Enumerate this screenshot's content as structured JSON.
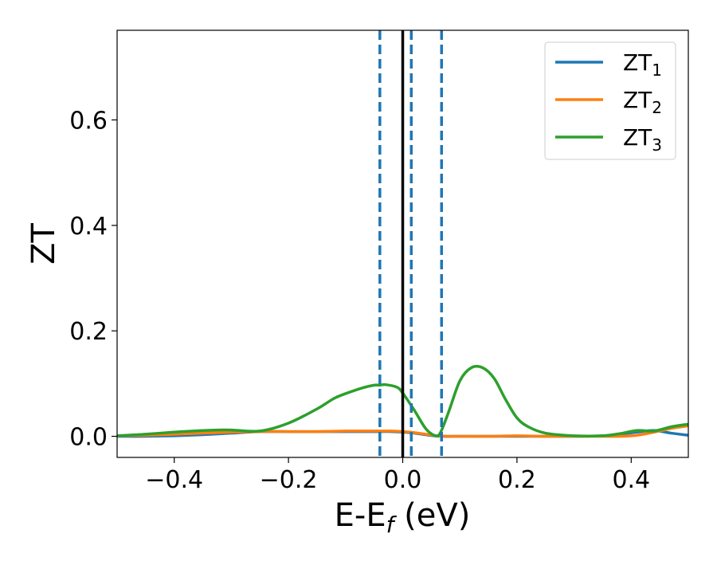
{
  "chart_data": {
    "type": "line",
    "xlabel_main": "E-E",
    "xlabel_sub": "f",
    "xlabel_unit": " (eV)",
    "ylabel": "ZT",
    "xlim": [
      -0.5,
      0.5
    ],
    "ylim": [
      -0.04,
      0.77
    ],
    "xticks": [
      -0.4,
      -0.2,
      0.0,
      0.2,
      0.4
    ],
    "xtick_labels": [
      "−0.4",
      "−0.2",
      "0.0",
      "0.2",
      "0.4"
    ],
    "yticks": [
      0.0,
      0.2,
      0.4,
      0.6
    ],
    "ytick_labels": [
      "0.0",
      "0.2",
      "0.4",
      "0.6"
    ],
    "grid": false,
    "legend_position": "top-right",
    "series": [
      {
        "name": "ZT",
        "name_sub": "1",
        "color": "#1f77b4",
        "x": [
          -0.5,
          -0.45,
          -0.4,
          -0.35,
          -0.3,
          -0.25,
          -0.2,
          -0.15,
          -0.1,
          -0.07,
          -0.04,
          -0.02,
          0.0,
          0.02,
          0.04,
          0.055,
          0.07,
          0.1,
          0.15,
          0.2,
          0.25,
          0.3,
          0.35,
          0.38,
          0.41,
          0.44,
          0.47,
          0.5
        ],
        "y": [
          0.0,
          0.0,
          0.001,
          0.003,
          0.006,
          0.009,
          0.009,
          0.009,
          0.009,
          0.009,
          0.009,
          0.009,
          0.008,
          0.006,
          0.003,
          0.001,
          0.0,
          0.0,
          0.0,
          0.0,
          0.0,
          0.0,
          0.001,
          0.004,
          0.008,
          0.011,
          0.006,
          0.002
        ]
      },
      {
        "name": "ZT",
        "name_sub": "2",
        "color": "#ff7f0e",
        "x": [
          -0.5,
          -0.45,
          -0.4,
          -0.35,
          -0.3,
          -0.25,
          -0.2,
          -0.15,
          -0.1,
          -0.05,
          -0.02,
          0.0,
          0.02,
          0.04,
          0.06,
          0.08,
          0.1,
          0.15,
          0.2,
          0.25,
          0.3,
          0.35,
          0.38,
          0.41,
          0.44,
          0.47,
          0.5
        ],
        "y": [
          0.001,
          0.002,
          0.004,
          0.006,
          0.008,
          0.009,
          0.009,
          0.009,
          0.01,
          0.01,
          0.01,
          0.009,
          0.007,
          0.004,
          0.001,
          0.0,
          0.0,
          0.0,
          0.001,
          0.0,
          0.0,
          0.0,
          0.0,
          0.002,
          0.008,
          0.015,
          0.02
        ]
      },
      {
        "name": "ZT",
        "name_sub": "3",
        "color": "#2ca02c",
        "x": [
          -0.5,
          -0.45,
          -0.4,
          -0.35,
          -0.32,
          -0.3,
          -0.25,
          -0.2,
          -0.15,
          -0.12,
          -0.1,
          -0.07,
          -0.05,
          -0.04,
          -0.03,
          -0.01,
          0.0,
          0.02,
          0.04,
          0.055,
          0.065,
          0.08,
          0.1,
          0.12,
          0.14,
          0.16,
          0.18,
          0.2,
          0.22,
          0.25,
          0.3,
          0.35,
          0.38,
          0.41,
          0.44,
          0.47,
          0.5
        ],
        "y": [
          0.001,
          0.004,
          0.008,
          0.011,
          0.012,
          0.012,
          0.01,
          0.025,
          0.052,
          0.072,
          0.081,
          0.092,
          0.097,
          0.097,
          0.098,
          0.093,
          0.082,
          0.05,
          0.015,
          0.002,
          0.005,
          0.045,
          0.105,
          0.13,
          0.13,
          0.11,
          0.07,
          0.035,
          0.018,
          0.006,
          0.001,
          0.001,
          0.005,
          0.011,
          0.01,
          0.018,
          0.023
        ]
      }
    ],
    "vlines": [
      {
        "x": -0.04,
        "style": "dashed",
        "color": "#1f77b4"
      },
      {
        "x": 0.015,
        "style": "dashed",
        "color": "#1f77b4"
      },
      {
        "x": 0.068,
        "style": "dashed",
        "color": "#1f77b4"
      },
      {
        "x": 0.0,
        "style": "solid",
        "color": "#000000"
      }
    ]
  }
}
